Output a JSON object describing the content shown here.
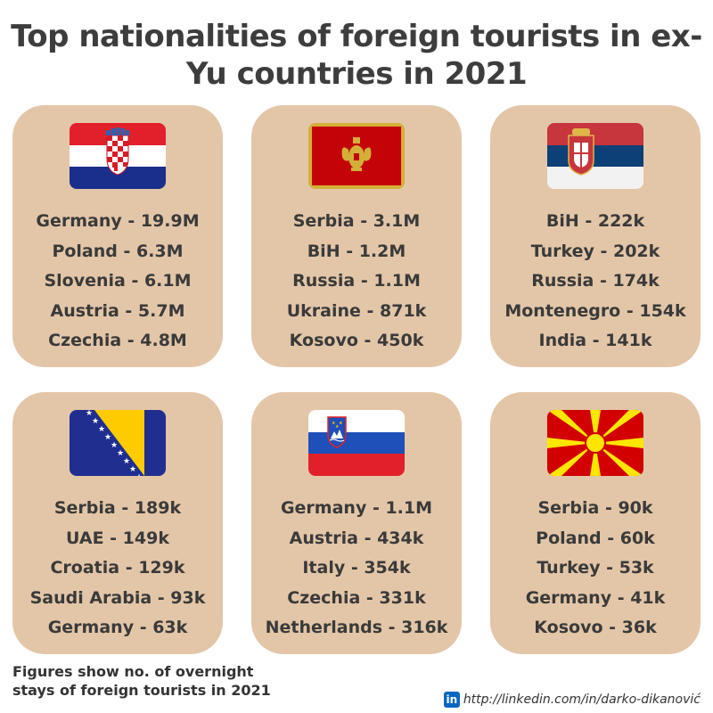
{
  "title": "Top nationalities of foreign tourists in ex-Yu countries in 2021",
  "cards": [
    {
      "flag_icon": "croatia-flag-icon",
      "items": [
        "Germany - 19.9M",
        "Poland - 6.3M",
        "Slovenia - 6.1M",
        "Austria - 5.7M",
        "Czechia - 4.8M"
      ]
    },
    {
      "flag_icon": "montenegro-flag-icon",
      "items": [
        "Serbia - 3.1M",
        "BiH - 1.2M",
        "Russia - 1.1M",
        "Ukraine - 871k",
        "Kosovo - 450k"
      ]
    },
    {
      "flag_icon": "serbia-flag-icon",
      "items": [
        "BiH - 222k",
        "Turkey - 202k",
        "Russia - 174k",
        "Montenegro - 154k",
        "India - 141k"
      ]
    },
    {
      "flag_icon": "bosnia-flag-icon",
      "items": [
        "Serbia - 189k",
        "UAE - 149k",
        "Croatia - 129k",
        "Saudi Arabia - 93k",
        "Germany - 63k"
      ]
    },
    {
      "flag_icon": "slovenia-flag-icon",
      "items": [
        "Germany - 1.1M",
        "Austria - 434k",
        "Italy - 354k",
        "Czechia - 331k",
        "Netherlands - 316k"
      ]
    },
    {
      "flag_icon": "north-macedonia-flag-icon",
      "items": [
        "Serbia - 90k",
        "Poland - 60k",
        "Turkey - 53k",
        "Germany - 41k",
        "Kosovo - 36k"
      ]
    }
  ],
  "footer": {
    "note_line1": "Figures show no. of overnight",
    "note_line2": "stays of foreign tourists in 2021",
    "linkedin_icon": "linkedin-icon",
    "linkedin_glyph": "in",
    "credit_url": "http://linkedin.com/in/darko-dikanović"
  },
  "colors": {
    "card_bg": "#e3c6a8",
    "title_text": "#3d3d3d",
    "body_text": "#3a3a3a",
    "linkedin_blue": "#0a66c2"
  }
}
